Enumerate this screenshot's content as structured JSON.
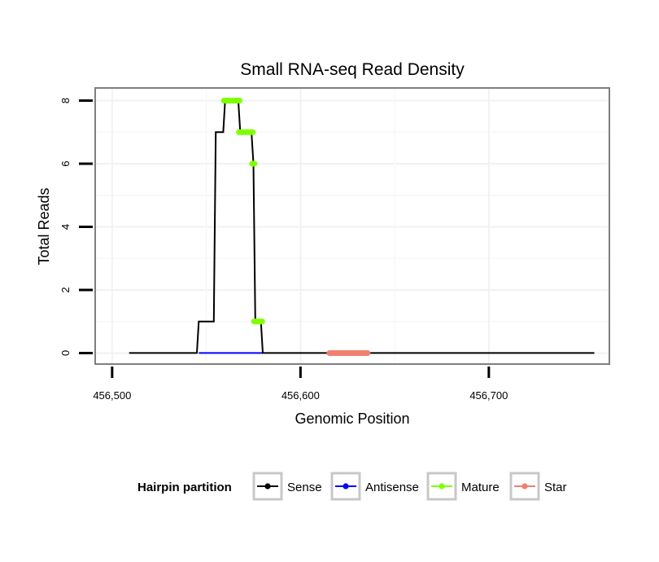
{
  "chart_data": {
    "type": "line",
    "title": "Small RNA-seq Read Density",
    "xlabel": "Genomic Position",
    "ylabel": "Total Reads",
    "xlim": [
      456491,
      456764
    ],
    "ylim": [
      -0.35,
      8.4
    ],
    "x_ticks": [
      456500,
      456600,
      456700
    ],
    "x_tick_labels": [
      "456,500",
      "456,600",
      "456,700"
    ],
    "y_ticks": [
      0,
      2,
      4,
      6,
      8
    ],
    "y_tick_labels": [
      "0",
      "2",
      "4",
      "6",
      "8"
    ],
    "grid": true,
    "legend_position": "bottom",
    "legend_title": "Hairpin partition",
    "legend": [
      {
        "name": "Sense",
        "color": "#000000"
      },
      {
        "name": "Antisense",
        "color": "#0000ff"
      },
      {
        "name": "Mature",
        "color": "#7fff00"
      },
      {
        "name": "Star",
        "color": "#f08070"
      }
    ],
    "series": [
      {
        "name": "Sense",
        "color": "#000000",
        "points": [
          [
            456509,
            0
          ],
          [
            456545,
            0
          ],
          [
            456546,
            1
          ],
          [
            456554,
            1
          ],
          [
            456555,
            7
          ],
          [
            456559,
            7
          ],
          [
            456560,
            8
          ],
          [
            456567,
            8
          ],
          [
            456568,
            7
          ],
          [
            456574,
            7
          ],
          [
            456575,
            6
          ],
          [
            456576,
            1
          ],
          [
            456579,
            1
          ],
          [
            456580,
            0
          ],
          [
            456756,
            0
          ]
        ]
      },
      {
        "name": "Antisense",
        "color": "#0000ff",
        "points": [
          [
            456546,
            0
          ],
          [
            456580,
            0
          ]
        ]
      },
      {
        "name": "Mature",
        "color": "#7fff00",
        "segments": [
          {
            "x": [
              456560,
              456567
            ],
            "y": 8
          },
          {
            "x": [
              456568,
              456574
            ],
            "y": 7
          },
          {
            "x": [
              456575,
              456575
            ],
            "y": 6
          },
          {
            "x": [
              456576,
              456579
            ],
            "y": 1
          }
        ]
      },
      {
        "name": "Star",
        "color": "#f08070",
        "segments": [
          {
            "x": [
              456616,
              456635
            ],
            "y": 0
          }
        ]
      }
    ]
  }
}
